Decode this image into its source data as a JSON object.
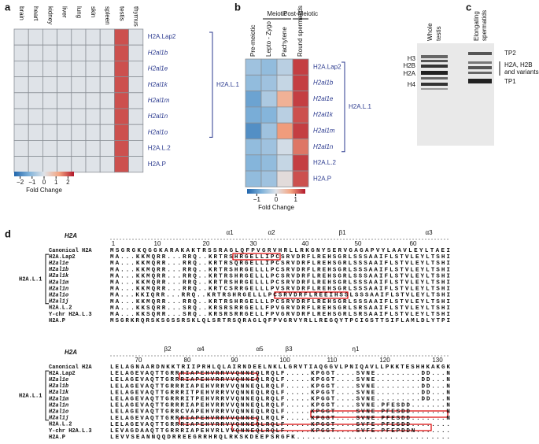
{
  "panel_a": {
    "label": "a",
    "columns": [
      "brain",
      "heart",
      "kidney",
      "liver",
      "lung",
      "skin",
      "spleen",
      "testis",
      "thymus"
    ],
    "rows": [
      "H2A.Lap2",
      "H2al1b",
      "H2al1e",
      "H2al1k",
      "H2al1m",
      "H2al1n",
      "H2al1o",
      "H2A.L.2",
      "H2A.P"
    ],
    "values": [
      [
        0,
        0,
        0,
        0,
        0,
        0,
        0,
        2,
        0
      ],
      [
        0,
        0,
        0,
        0,
        0,
        0,
        0,
        2,
        0
      ],
      [
        0,
        0,
        0,
        0,
        0,
        0,
        0,
        2,
        0
      ],
      [
        0,
        0,
        0,
        0,
        0,
        0,
        0,
        2,
        0
      ],
      [
        0,
        0,
        0,
        0,
        0,
        0,
        0,
        2,
        0
      ],
      [
        0,
        0,
        0,
        0,
        0,
        0,
        0,
        2,
        0
      ],
      [
        0,
        0,
        0,
        0,
        0,
        0,
        0,
        2,
        0
      ],
      [
        0,
        0,
        0,
        0,
        0,
        0,
        0,
        2,
        0
      ],
      [
        0,
        0,
        0,
        0,
        0,
        0,
        0,
        2,
        0
      ]
    ],
    "group_label": "H2A.L.1",
    "colorbar": {
      "title": "Fold Change",
      "lim": [
        -2.5,
        2.5
      ],
      "ticks": [
        {
          "value": -2,
          "label": "−2"
        },
        {
          "value": -1,
          "label": "−1"
        },
        0,
        1,
        2
      ]
    }
  },
  "panel_b": {
    "label": "b",
    "groups": [
      "Meiotic",
      "Post-Meiotic"
    ],
    "columns": [
      "Pre-meiotic",
      "Lepto - Zygo",
      "Pachytene",
      "Round spermatids"
    ],
    "rows": [
      "H2A.Lap2",
      "H2al1b",
      "H2al1e",
      "H2al1k",
      "H2al1m",
      "H2al1n",
      "H2A.L.2",
      "H2A.P"
    ],
    "values": [
      [
        -0.5,
        -0.6,
        -0.3,
        1.3
      ],
      [
        -0.6,
        -0.5,
        -0.2,
        1.3
      ],
      [
        -0.9,
        -0.4,
        0.6,
        1.3
      ],
      [
        -0.8,
        -0.7,
        -0.3,
        1.2
      ],
      [
        -1.1,
        -0.5,
        0.8,
        1.3
      ],
      [
        -0.6,
        -0.5,
        -0.1,
        1.0
      ],
      [
        -0.7,
        -0.6,
        -0.2,
        1.3
      ],
      [
        -0.6,
        -0.5,
        0.1,
        1.2
      ]
    ],
    "group_label": "H2A.L.1",
    "colorbar": {
      "title": "Fold Change",
      "lim": [
        -1.5,
        1.5
      ],
      "ticks": [
        {
          "value": -1,
          "label": "−1"
        },
        0,
        1
      ]
    }
  },
  "panel_c": {
    "label": "c",
    "lanes": [
      "Whole testis",
      "Elongating spermatids"
    ],
    "left_labels": [
      "H3",
      "H2B",
      "H2A",
      "H4"
    ],
    "right_labels": [
      "TP2",
      "H2A, H2B",
      "and variants",
      "TP1"
    ]
  },
  "panel_d": {
    "label": "d",
    "group_label": "H2A.L.1",
    "names": [
      "Canonical H2A",
      "H2A.Lap2",
      "H2al1e",
      "H2al1b",
      "H2al1k",
      "H2al1m",
      "H2al1n",
      "H2al1o",
      "H2al1j",
      "H2A.L.2",
      "Y-chr H2A.L.3",
      "H2A.P"
    ],
    "blocks": [
      {
        "header": "H2A",
        "ruler": [
          1,
          10,
          20,
          30,
          40,
          50,
          60
        ],
        "structure": [
          "α1",
          "α2",
          "β1",
          "α3"
        ],
        "sequences": [
          "MSGRGKQGGKARAKAKTRSSRAGLQFPVGRVHRLLRKGNYSERVGAGAPVYLAAVLEYLTAEI",
          "MA...KKMQRR...RRQ..KRTRSHRGELLIPCSRVDRFLREHSGRLSSSAAIFLSTVLEYLTSHI",
          "MA...KKMQRR...RRQ..KRTRSQRGELLIPCSRVDRFLREHSGRLSSSAAIFLSTVLEYLTSHI",
          "MA...KKMQRR...RRQ..KRTRSHRGELLLPCSRVDRFLREHSGRLSSSAAIFLSTVLEYLTSHI",
          "MA...KKMQRR...RRQ..KRTRSHRGELLLPCSRVDRFLREHSGRLSSSAAIFLSTVLEYLTSHI",
          "MA...KKMQRR...RRQ..KRTRSHRGELLLPCSRVDRFLREHSGRLSSSAAIFLSTVLEYLTSHI",
          "MA...KKMQRR...RRQ..KRTCSRRGELLLPVSRVDRFLREHSGRLSSSAAIFLSTVLEYLTSHI",
          "MA...KKIQRR...RRQ..KRTRSHRGELLLPCSRVDRFLREEIHSSLSSSAAIFLSTVLEYLTSHI",
          "MA...KKMQRR...RRQ..KRTRSHRGELLLPCSRVDRFLREHSGRLSSSAAIFLSTVLEYLTSHI",
          "MA...KKSQRR...SRQ..KRSRSRRGELLFPVGRVDRFLREHSGRLSRSAAIFLSTVLEYLTSHI",
          "MA...KKSQRR...SRQ..KRSRSRRGELLFPVGRVDRFLREHSGRLSRSAAIFLSTVLEYLTSHI",
          "MSGRKRQRSKSGSSRSKLQLSRTRSQRAGLQFPVGRVYRLLREGQYTPCIGSTTSIFLAMLDLYTPI"
        ]
      },
      {
        "header": "H2A",
        "ruler": [
          70,
          80,
          90,
          100,
          110,
          120,
          130
        ],
        "structure": [
          "β2",
          "α4",
          "α5",
          "β3",
          "η1"
        ],
        "sequences": [
          "LELAGNAARDNKKTRIIPRHLQLAIRNDEELNKLLGRVTIAQGGVLPNIQAVLLPKKTESHHKAKGK",
          "LELAGEVAQTTGRRRIAPEHVRRVVQNNEQLRQLF.....KPGGT....SVNE.........DD...N",
          "LELAGEVAQTTGRRRIAPEHVRRVVQNNEQLRQLF.....KPGGT....SVNE.........DD...N",
          "LELAGEVAQTTGRRRIAPEHVRRVVQNNEQLRQLF.....KPGGT....SVNE.........DD...N",
          "LELAGEVAQTTGRRRITPEHVRRVVQNNEQLRQLF.....KPGGT....SVNE.........DD...N",
          "LELAGEVAQTTGRRRITPEHVRRVVQNNEQLRQLF.....KPGGT....SVNE.........DD...N",
          "LELAGEVAQTTGRRRIAPEHVRRVVQNNEQLRQLF.....KPGGT....SVNE.PFESDD.......N",
          "LELAGEVAQTTGRRCVAPEHVRRVVQNNEQLRQLF.....KPGGT....SVNE.PFESDD.......N",
          "LELAGEVAQTTGRRRIAPEHVRRVVQNNEQLRQLF.....KPGGT....SVNE.PFESDD.......N",
          "LELAGEVAQTTGRRRIAPEHVRRVVQNNEQLRQLF.....KPGGT....SVFE.PFESDD........",
          "LEVAGDAAQTTGRRRIAPEHVRLVVQNNEQLRQLF.....KPGGT....SVFE.PFEPDDN.......",
          "LEVVSEANNQQDRREEGRRHRQLRKSKDEEPSRGFK.............................."
        ]
      }
    ]
  }
}
